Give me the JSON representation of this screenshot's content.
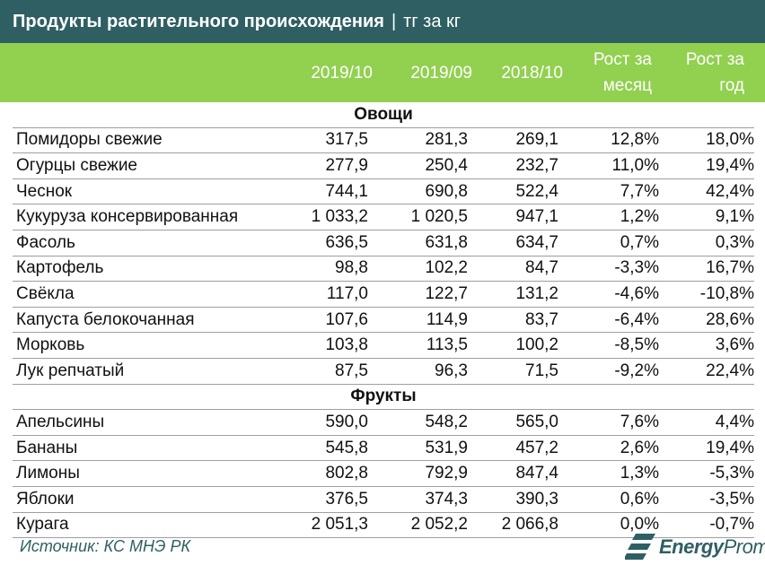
{
  "header": {
    "title": "Продукты растительного происхождения",
    "separator": "|",
    "unit": "тг за кг"
  },
  "columns": [
    "2019/10",
    "2019/09",
    "2018/10",
    "Рост за месяц",
    "Рост за год"
  ],
  "groups": [
    {
      "name": "Овощи",
      "rows": [
        {
          "name": "Помидоры свежие",
          "values": [
            "317,5",
            "281,3",
            "269,1",
            "12,8%",
            "18,0%"
          ]
        },
        {
          "name": "Огурцы свежие",
          "values": [
            "277,9",
            "250,4",
            "232,7",
            "11,0%",
            "19,4%"
          ]
        },
        {
          "name": "Чеснок",
          "values": [
            "744,1",
            "690,8",
            "522,4",
            "7,7%",
            "42,4%"
          ]
        },
        {
          "name": "Кукуруза консервированная",
          "values": [
            "1 033,2",
            "1 020,5",
            "947,1",
            "1,2%",
            "9,1%"
          ]
        },
        {
          "name": "Фасоль",
          "values": [
            "636,5",
            "631,8",
            "634,7",
            "0,7%",
            "0,3%"
          ]
        },
        {
          "name": "Картофель",
          "values": [
            "98,8",
            "102,2",
            "84,7",
            "-3,3%",
            "16,7%"
          ]
        },
        {
          "name": "Свёкла",
          "values": [
            "117,0",
            "122,7",
            "131,2",
            "-4,6%",
            "-10,8%"
          ]
        },
        {
          "name": "Капуста белокочанная",
          "values": [
            "107,6",
            "114,9",
            "83,7",
            "-6,4%",
            "28,6%"
          ]
        },
        {
          "name": "Морковь",
          "values": [
            "103,8",
            "113,5",
            "100,2",
            "-8,5%",
            "3,6%"
          ]
        },
        {
          "name": "Лук репчатый",
          "values": [
            "87,5",
            "96,3",
            "71,5",
            "-9,2%",
            "22,4%"
          ]
        }
      ]
    },
    {
      "name": "Фрукты",
      "rows": [
        {
          "name": "Апельсины",
          "values": [
            "590,0",
            "548,2",
            "565,0",
            "7,6%",
            "4,4%"
          ]
        },
        {
          "name": "Бананы",
          "values": [
            "545,8",
            "531,9",
            "457,2",
            "2,6%",
            "19,4%"
          ]
        },
        {
          "name": "Лимоны",
          "values": [
            "802,8",
            "792,9",
            "847,4",
            "1,3%",
            "-5,3%"
          ]
        },
        {
          "name": "Яблоки",
          "values": [
            "376,5",
            "374,3",
            "390,3",
            "0,6%",
            "-3,5%"
          ]
        },
        {
          "name": "Курага",
          "values": [
            "2 051,3",
            "2 052,2",
            "2 066,8",
            "0,0%",
            "-0,7%"
          ]
        }
      ]
    }
  ],
  "footer": {
    "source": "Источник: КС МНЭ РК",
    "brand_bold": "Energy",
    "brand_rest": "Prom",
    "logo_icon": "energyprom-logo-icon"
  },
  "colors": {
    "title_bg": "#2f5f63",
    "header_bg": "#92d050",
    "header_text": "#ffffff",
    "source_text": "#2f5f63"
  },
  "chart_data": {
    "type": "table",
    "title": "Продукты растительного происхождения | тг за кг",
    "columns": [
      "2019/10",
      "2019/09",
      "2018/10",
      "Рост за месяц",
      "Рост за год"
    ],
    "groups": [
      {
        "name": "Овощи",
        "rows": [
          {
            "name": "Помидоры свежие",
            "values": [
              317.5,
              281.3,
              269.1,
              12.8,
              18.0
            ]
          },
          {
            "name": "Огурцы свежие",
            "values": [
              277.9,
              250.4,
              232.7,
              11.0,
              19.4
            ]
          },
          {
            "name": "Чеснок",
            "values": [
              744.1,
              690.8,
              522.4,
              7.7,
              42.4
            ]
          },
          {
            "name": "Кукуруза консервированная",
            "values": [
              1033.2,
              1020.5,
              947.1,
              1.2,
              9.1
            ]
          },
          {
            "name": "Фасоль",
            "values": [
              636.5,
              631.8,
              634.7,
              0.7,
              0.3
            ]
          },
          {
            "name": "Картофель",
            "values": [
              98.8,
              102.2,
              84.7,
              -3.3,
              16.7
            ]
          },
          {
            "name": "Свёкла",
            "values": [
              117.0,
              122.7,
              131.2,
              -4.6,
              -10.8
            ]
          },
          {
            "name": "Капуста белокочанная",
            "values": [
              107.6,
              114.9,
              83.7,
              -6.4,
              28.6
            ]
          },
          {
            "name": "Морковь",
            "values": [
              103.8,
              113.5,
              100.2,
              -8.5,
              3.6
            ]
          },
          {
            "name": "Лук репчатый",
            "values": [
              87.5,
              96.3,
              71.5,
              -9.2,
              22.4
            ]
          }
        ]
      },
      {
        "name": "Фрукты",
        "rows": [
          {
            "name": "Апельсины",
            "values": [
              590.0,
              548.2,
              565.0,
              7.6,
              4.4
            ]
          },
          {
            "name": "Бананы",
            "values": [
              545.8,
              531.9,
              457.2,
              2.6,
              19.4
            ]
          },
          {
            "name": "Лимоны",
            "values": [
              802.8,
              792.9,
              847.4,
              1.3,
              -5.3
            ]
          },
          {
            "name": "Яблоки",
            "values": [
              376.5,
              374.3,
              390.3,
              0.6,
              -3.5
            ]
          },
          {
            "name": "Курага",
            "values": [
              2051.3,
              2052.2,
              2066.8,
              0.0,
              -0.7
            ]
          }
        ]
      }
    ]
  }
}
